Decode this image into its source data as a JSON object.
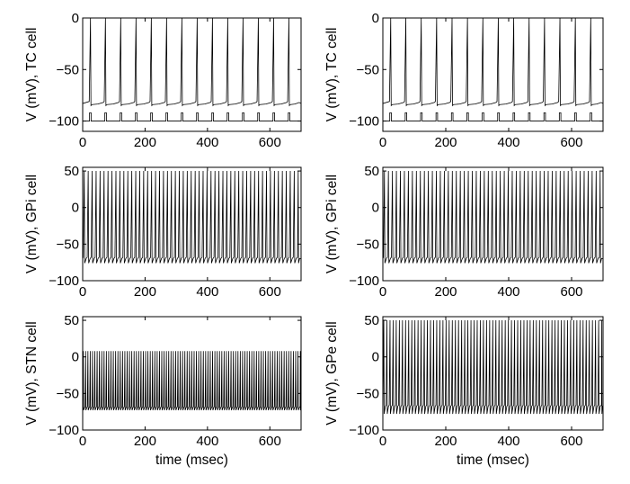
{
  "figure": {
    "xlabel_common": "time (msec)"
  },
  "chart_data": [
    {
      "type": "line",
      "panel": "top-left",
      "ylabel": "V (mV), TC cell",
      "xlabel": "",
      "xlim": [
        0,
        700
      ],
      "ylim": [
        -110,
        0
      ],
      "xticks": [
        0,
        200,
        400,
        600
      ],
      "yticks": [
        0,
        -50,
        -100
      ],
      "series": [
        {
          "values_description_ms": "spike times",
          "spike_times": [
            25,
            73,
            122,
            171,
            220,
            269,
            318,
            367,
            416,
            465,
            514,
            563,
            612,
            661
          ],
          "baseline": -83,
          "peak": 0
        },
        {
          "pulse_train": true,
          "pulse_low": -100,
          "pulse_high": -92,
          "pulse_times": [
            22,
            71,
            120,
            169,
            218,
            267,
            316,
            365,
            414,
            463,
            512,
            561,
            610,
            659
          ],
          "pulse_width": 5
        }
      ]
    },
    {
      "type": "line",
      "panel": "top-right",
      "ylabel": "V (mV), TC cell",
      "xlabel": "",
      "xlim": [
        0,
        700
      ],
      "ylim": [
        -110,
        0
      ],
      "xticks": [
        0,
        200,
        400,
        600
      ],
      "yticks": [
        0,
        -50,
        -100
      ],
      "series": [
        {
          "spike_times": [
            25,
            73,
            122,
            171,
            220,
            269,
            318,
            367,
            416,
            465,
            514,
            563,
            612,
            661
          ],
          "baseline": -83,
          "peak": 0
        },
        {
          "pulse_train": true,
          "pulse_low": -100,
          "pulse_high": -92,
          "pulse_times": [
            22,
            71,
            120,
            169,
            218,
            267,
            316,
            365,
            414,
            463,
            512,
            561,
            610,
            659
          ],
          "pulse_width": 5
        }
      ]
    },
    {
      "type": "line",
      "panel": "middle-left",
      "ylabel": "V (mV), GPi cell",
      "xlabel": "",
      "xlim": [
        0,
        700
      ],
      "ylim": [
        -100,
        55
      ],
      "xticks": [
        0,
        200,
        400,
        600
      ],
      "yticks": [
        50,
        0,
        -50,
        -100
      ],
      "series": [
        {
          "spike_period": 12.7,
          "first_spike": 5,
          "baseline": -70,
          "trough": -76,
          "peak": 50
        }
      ]
    },
    {
      "type": "line",
      "panel": "middle-right",
      "ylabel": "V (mV), GPi cell",
      "xlabel": "",
      "xlim": [
        0,
        700
      ],
      "ylim": [
        -100,
        55
      ],
      "xticks": [
        0,
        200,
        400,
        600
      ],
      "yticks": [
        50,
        0,
        -50,
        -100
      ],
      "series": [
        {
          "spike_period": 12.7,
          "first_spike": 5,
          "baseline": -70,
          "trough": -76,
          "peak": 50
        }
      ]
    },
    {
      "type": "line",
      "panel": "bottom-left",
      "ylabel": "V (mV), STN cell",
      "xlabel": "time (msec)",
      "xlim": [
        0,
        700
      ],
      "ylim": [
        -100,
        55
      ],
      "xticks": [
        0,
        200,
        400,
        600
      ],
      "yticks": [
        50,
        0,
        -50,
        -100
      ],
      "series": [
        {
          "spike_period": 7.4,
          "first_spike": 2,
          "baseline": -70,
          "trough": -73,
          "peak": 8
        }
      ]
    },
    {
      "type": "line",
      "panel": "bottom-right",
      "ylabel": "V (mV), GPe cell",
      "xlabel": "time (msec)",
      "xlim": [
        0,
        700
      ],
      "ylim": [
        -100,
        55
      ],
      "xticks": [
        0,
        200,
        400,
        600
      ],
      "yticks": [
        50,
        0,
        -50,
        -100
      ],
      "series": [
        {
          "spike_period": 9.9,
          "first_spike": 3,
          "baseline": -68,
          "trough": -78,
          "peak": 50
        }
      ]
    }
  ]
}
